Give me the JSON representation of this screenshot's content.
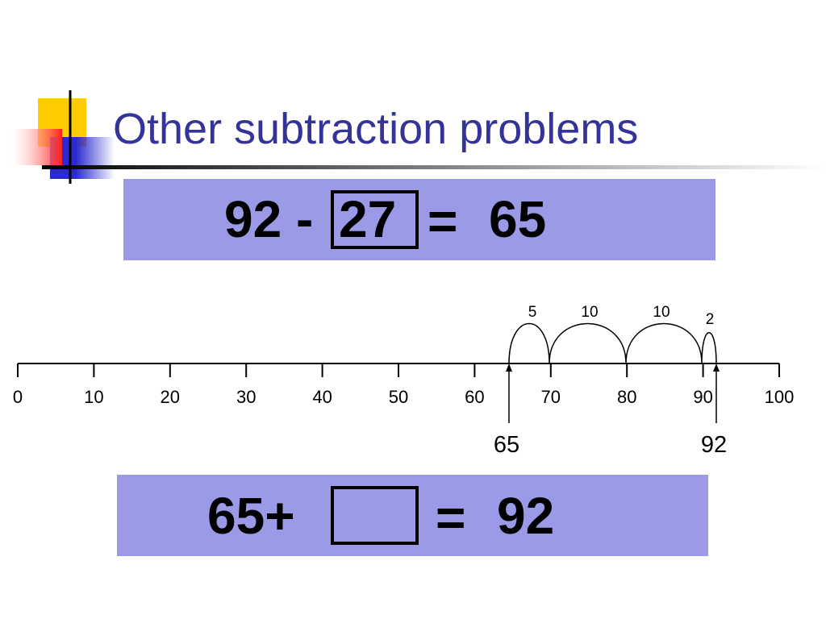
{
  "title": "Other subtraction problems",
  "equation_1": {
    "left": "92 -",
    "answer": "27",
    "equals": "=",
    "result": "65"
  },
  "number_line": {
    "ticks": [
      0,
      10,
      20,
      30,
      40,
      50,
      60,
      70,
      80,
      90,
      100
    ],
    "jumps": [
      5,
      10,
      10,
      2
    ],
    "start": 65,
    "end": 92
  },
  "equation_2": {
    "left": "65+",
    "equals": "=",
    "result": "92"
  }
}
